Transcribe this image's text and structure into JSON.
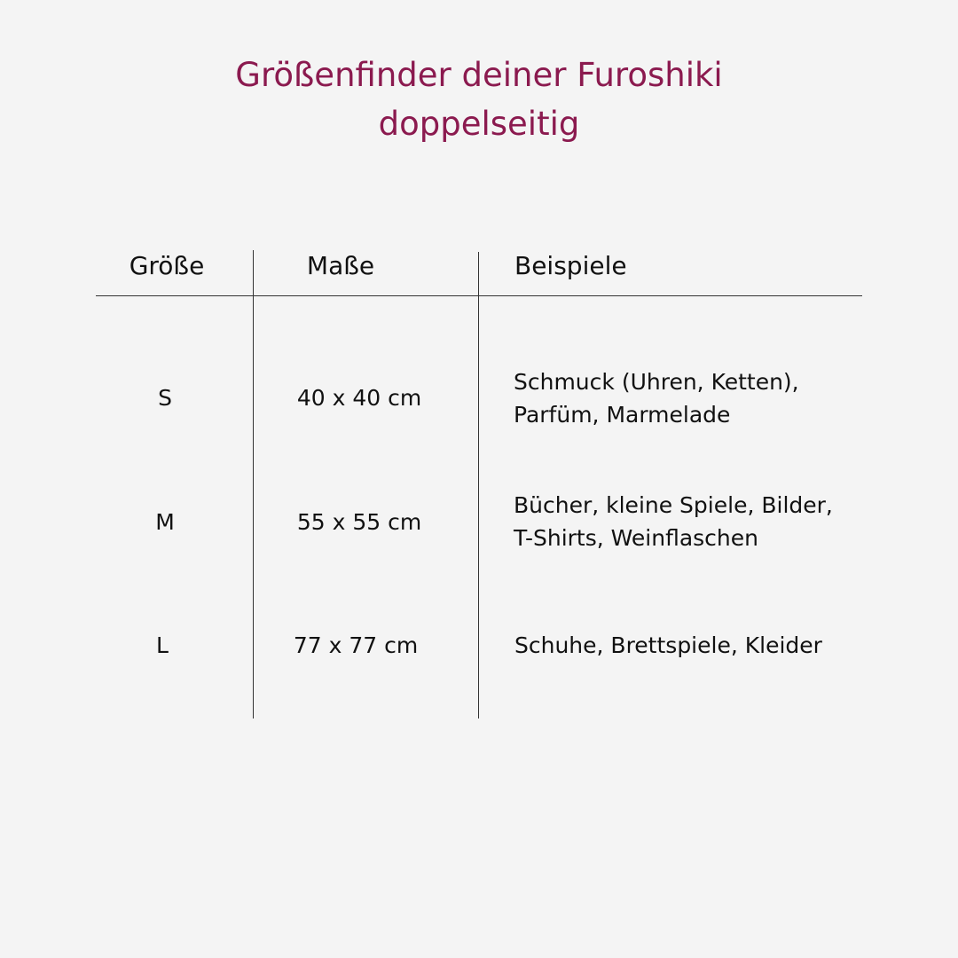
{
  "title": {
    "line1": "Größenfinder deiner Furoshiki",
    "line2": "doppelseitig"
  },
  "colors": {
    "title": "#8b1a4f",
    "background": "#f4f4f4"
  },
  "table": {
    "headers": [
      "Größe",
      "Maße",
      "Beispiele"
    ],
    "rows": [
      {
        "size": "S",
        "dimensions": "40 x 40 cm",
        "examples": [
          "Schmuck (Uhren, Ketten),",
          "Parfüm, Marmelade"
        ]
      },
      {
        "size": "M",
        "dimensions": "55 x 55 cm",
        "examples": [
          "Bücher, kleine Spiele, Bilder,",
          "T-Shirts, Weinflaschen"
        ]
      },
      {
        "size": "L",
        "dimensions": "77 x 77 cm",
        "examples": [
          "Schuhe, Brettspiele, Kleider"
        ]
      }
    ]
  }
}
